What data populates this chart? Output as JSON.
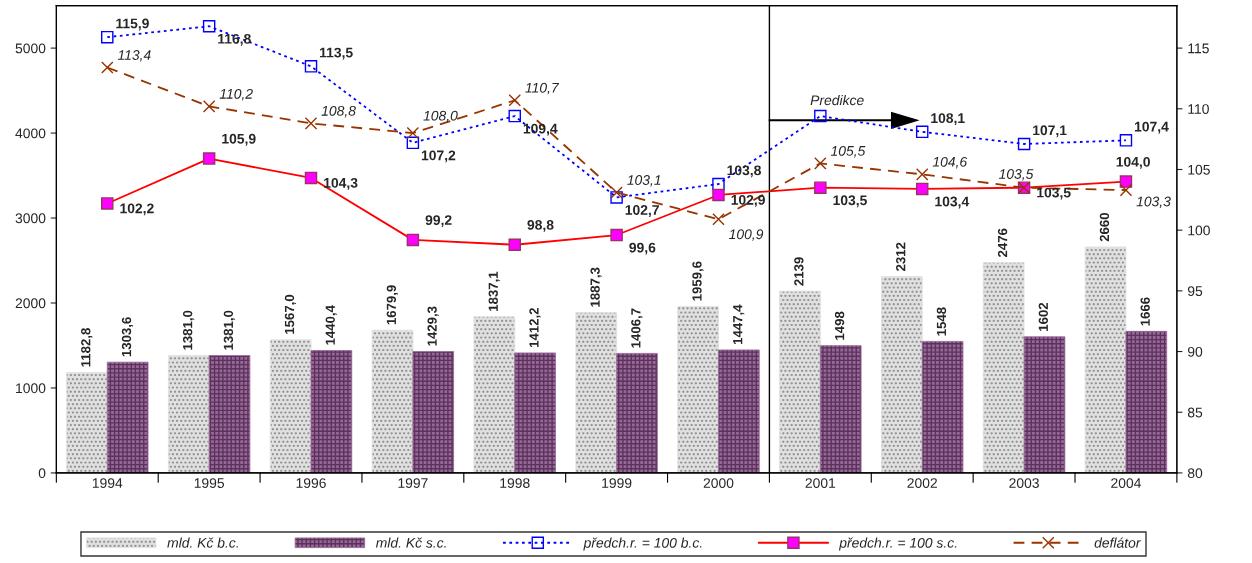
{
  "chart_data": {
    "type": "bar",
    "categories": [
      "1994",
      "1995",
      "1996",
      "1997",
      "1998",
      "1999",
      "2000",
      "2001",
      "2002",
      "2003",
      "2004"
    ],
    "ylim": [
      0,
      5500
    ],
    "yticks": [
      0,
      1000,
      2000,
      3000,
      4000,
      5000
    ],
    "y2lim": [
      80,
      118.5
    ],
    "y2ticks": [
      80,
      85,
      90,
      95,
      100,
      105,
      110,
      115
    ],
    "grid": false,
    "legend": "bottom",
    "series": [
      {
        "name": "mld. Kč b.c.",
        "color": "#e0e0e0",
        "values": [
          1182.8,
          1381.0,
          1567.0,
          1679.9,
          1837.1,
          1887.3,
          1959.6,
          2139,
          2312,
          2476,
          2660
        ],
        "value_labels": [
          "1182,8",
          "1381,0",
          "1567,0",
          "1679,9",
          "1837,1",
          "1887,3",
          "1959,6",
          "2139",
          "2312",
          "2476",
          "2660"
        ]
      },
      {
        "name": "mld. Kč s.c.",
        "color": "#996699",
        "values": [
          1303.6,
          1381.0,
          1440.4,
          1429.3,
          1412.2,
          1406.7,
          1447.4,
          1498,
          1548,
          1602,
          1666
        ],
        "value_labels": [
          "1303,6",
          "1381,0",
          "1440,4",
          "1429,3",
          "1412,2",
          "1406,7",
          "1447,4",
          "1498",
          "1548",
          "1602",
          "1666"
        ]
      },
      {
        "name": "předch.r. = 100 b.c.",
        "type": "line",
        "axis": "y2",
        "color": "#0000ff",
        "marker": "square",
        "line_style": "dotted",
        "values": [
          115.9,
          116.8,
          113.5,
          107.2,
          109.4,
          102.7,
          103.8,
          109.4,
          108.1,
          107.1,
          107.4
        ],
        "value_labels": [
          "115,9",
          "116,8",
          "113,5",
          "107,2",
          "109,4",
          "102,7",
          "103,8",
          null,
          "108,1",
          "107,1",
          "107,4"
        ]
      },
      {
        "name": "předch.r. = 100 s.c.",
        "type": "line",
        "axis": "y2",
        "color": "#ff0000",
        "marker": "square",
        "line_style": "solid",
        "values": [
          102.2,
          105.9,
          104.3,
          99.2,
          98.8,
          99.6,
          102.9,
          103.5,
          103.4,
          103.5,
          104.0
        ],
        "value_labels": [
          "102,2",
          "105,9",
          "104,3",
          "99,2",
          "98,8",
          "99,6",
          "102,9",
          "103,5",
          "103,4",
          "103,5",
          "104,0"
        ]
      },
      {
        "name": "deflátor",
        "type": "line",
        "axis": "y2",
        "color": "#993300",
        "marker": "cross",
        "line_style": "dashed",
        "values": [
          113.4,
          110.2,
          108.8,
          108.0,
          110.7,
          103.1,
          100.9,
          105.5,
          104.6,
          103.5,
          103.3
        ],
        "value_labels": [
          "113,4",
          "110,2",
          "108,8",
          "108,0",
          "110,7",
          "103,1",
          "100,9",
          "105,5",
          "104,6",
          "103,5",
          "103,3"
        ]
      }
    ],
    "annotations": [
      "Predikce"
    ]
  }
}
